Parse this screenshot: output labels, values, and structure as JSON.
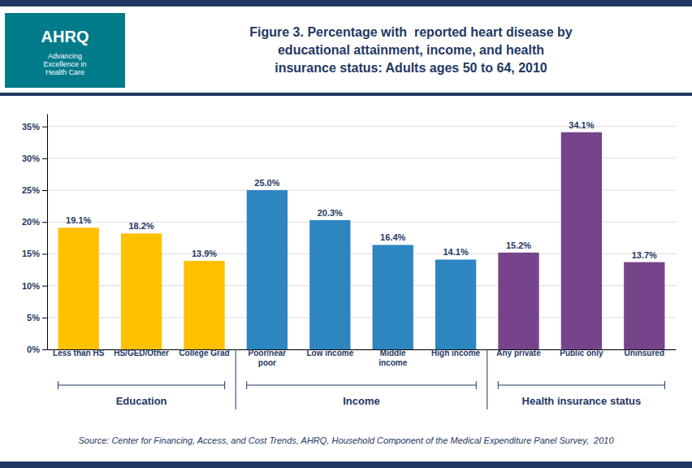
{
  "chart_data": {
    "type": "bar",
    "title": "Figure 3. Percentage with  reported heart disease by\neducational attainment, income, and health\ninsurance status: Adults ages 50 to 64, 2010",
    "annotations": [
      "AHRQ",
      "Advancing\nExcellence in\nHealth Care"
    ],
    "source": "Source: Center for Financing, Access, and Cost Trends, AHRQ, Household Component of the Medical Expenditure Panel Survey,  2010",
    "categories": [
      "Less than HS",
      "HS/GED/Other",
      "College Grad",
      "Poor/near\npoor",
      "Low income",
      "Middle\nincome",
      "High income",
      "Any private",
      "Public only",
      "Uninsured"
    ],
    "groups": [
      "Education",
      "Education",
      "Education",
      "Income",
      "Income",
      "Income",
      "Income",
      "Health insurance status",
      "Health insurance status",
      "Health insurance status"
    ],
    "values": [
      19.1,
      18.2,
      13.9,
      25.0,
      20.3,
      16.4,
      14.1,
      15.2,
      34.1,
      13.7
    ],
    "value_labels": [
      "19.1%",
      "18.2%",
      "13.9%",
      "25.0%",
      "20.3%",
      "16.4%",
      "14.1%",
      "15.2%",
      "34.1%",
      "13.7%"
    ],
    "colors": [
      "#FFC000",
      "#FFC000",
      "#FFC000",
      "#2E86C1",
      "#2E86C1",
      "#2E86C1",
      "#2E86C1",
      "#76448A",
      "#76448A",
      "#76448A"
    ],
    "ylim": [
      0,
      37
    ],
    "yticks": [
      {
        "value": 0,
        "label": "0%"
      },
      {
        "value": 5,
        "label": "5%"
      },
      {
        "value": 10,
        "label": "10%"
      },
      {
        "value": 15,
        "label": "15%"
      },
      {
        "value": 20,
        "label": "20%"
      },
      {
        "value": 25,
        "label": "25%"
      },
      {
        "value": 30,
        "label": "30%"
      },
      {
        "value": 35,
        "label": "35%"
      }
    ],
    "grid": true,
    "data_labels": true
  }
}
